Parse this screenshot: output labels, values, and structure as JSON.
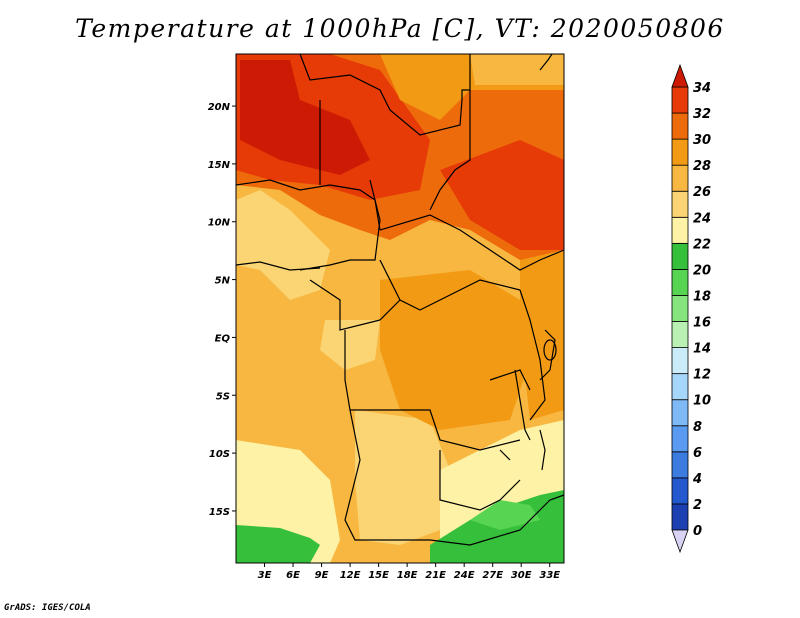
{
  "title": "Temperature at 1000hPa [C], VT: 2020050806",
  "credit": "GrADS: IGES/COLA",
  "map": {
    "lon_range": [
      0,
      34.5
    ],
    "lat_range": [
      -19.5,
      24.5
    ],
    "lat_ticks": [
      "20N",
      "15N",
      "10N",
      "5N",
      "EQ",
      "5S",
      "10S",
      "15S"
    ],
    "lon_ticks": [
      "3E",
      "6E",
      "9E",
      "12E",
      "15E",
      "18E",
      "21E",
      "24E",
      "27E",
      "30E",
      "33E"
    ]
  },
  "colorbar": {
    "labels": [
      "0",
      "2",
      "4",
      "6",
      "8",
      "10",
      "12",
      "14",
      "16",
      "18",
      "20",
      "22",
      "24",
      "26",
      "28",
      "30",
      "32",
      "34"
    ],
    "colors": [
      "#10107a",
      "#1c3fb2",
      "#2358cf",
      "#3c7be0",
      "#5a9af0",
      "#7fbaf7",
      "#a7d6fb",
      "#c9ecf8",
      "#b9f0b4",
      "#86e47c",
      "#56d452",
      "#36bf3a",
      "#fdf2a5",
      "#fbd574",
      "#f7b740",
      "#f29a14",
      "#ee6b0c",
      "#e63a07",
      "#cc1a04"
    ],
    "under_color": "#d8d3f5"
  }
}
